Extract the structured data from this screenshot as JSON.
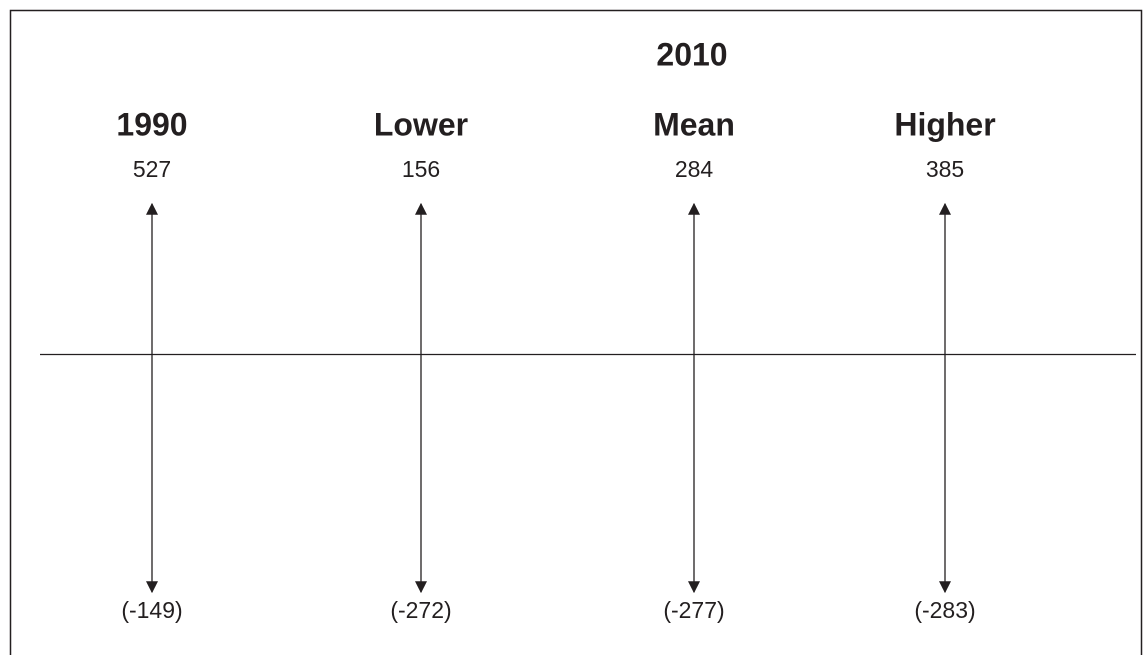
{
  "header": "2010",
  "columns": [
    {
      "heading": "1990",
      "top": "527",
      "bottom": "(-149)"
    },
    {
      "heading": "Lower",
      "top": "156",
      "bottom": "(-272)"
    },
    {
      "heading": "Mean",
      "top": "284",
      "bottom": "(-277)"
    },
    {
      "heading": "Higher",
      "top": "385",
      "bottom": "(-283)"
    }
  ]
}
